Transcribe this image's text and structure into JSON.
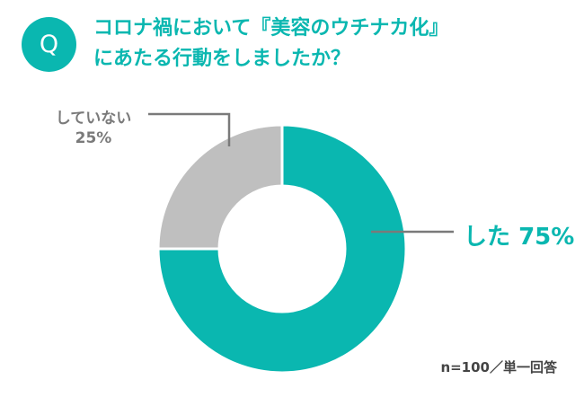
{
  "badge": "Q",
  "question": {
    "line1": "コロナ禍において『美容のウチナカ化』",
    "line2": "にあたる行動をしましたか？"
  },
  "chart_data": {
    "type": "pie",
    "donut": true,
    "slices": [
      {
        "label": "した",
        "value": 75,
        "display": "75%",
        "color": "#0ab7b0"
      },
      {
        "label": "していない",
        "value": 25,
        "display": "25%",
        "color": "#bfbfbf"
      }
    ],
    "note": "n=100／単一回答"
  },
  "colors": {
    "accent": "#0ab7b0",
    "gray": "#bfbfbf",
    "leader": "#7a7a7a"
  }
}
